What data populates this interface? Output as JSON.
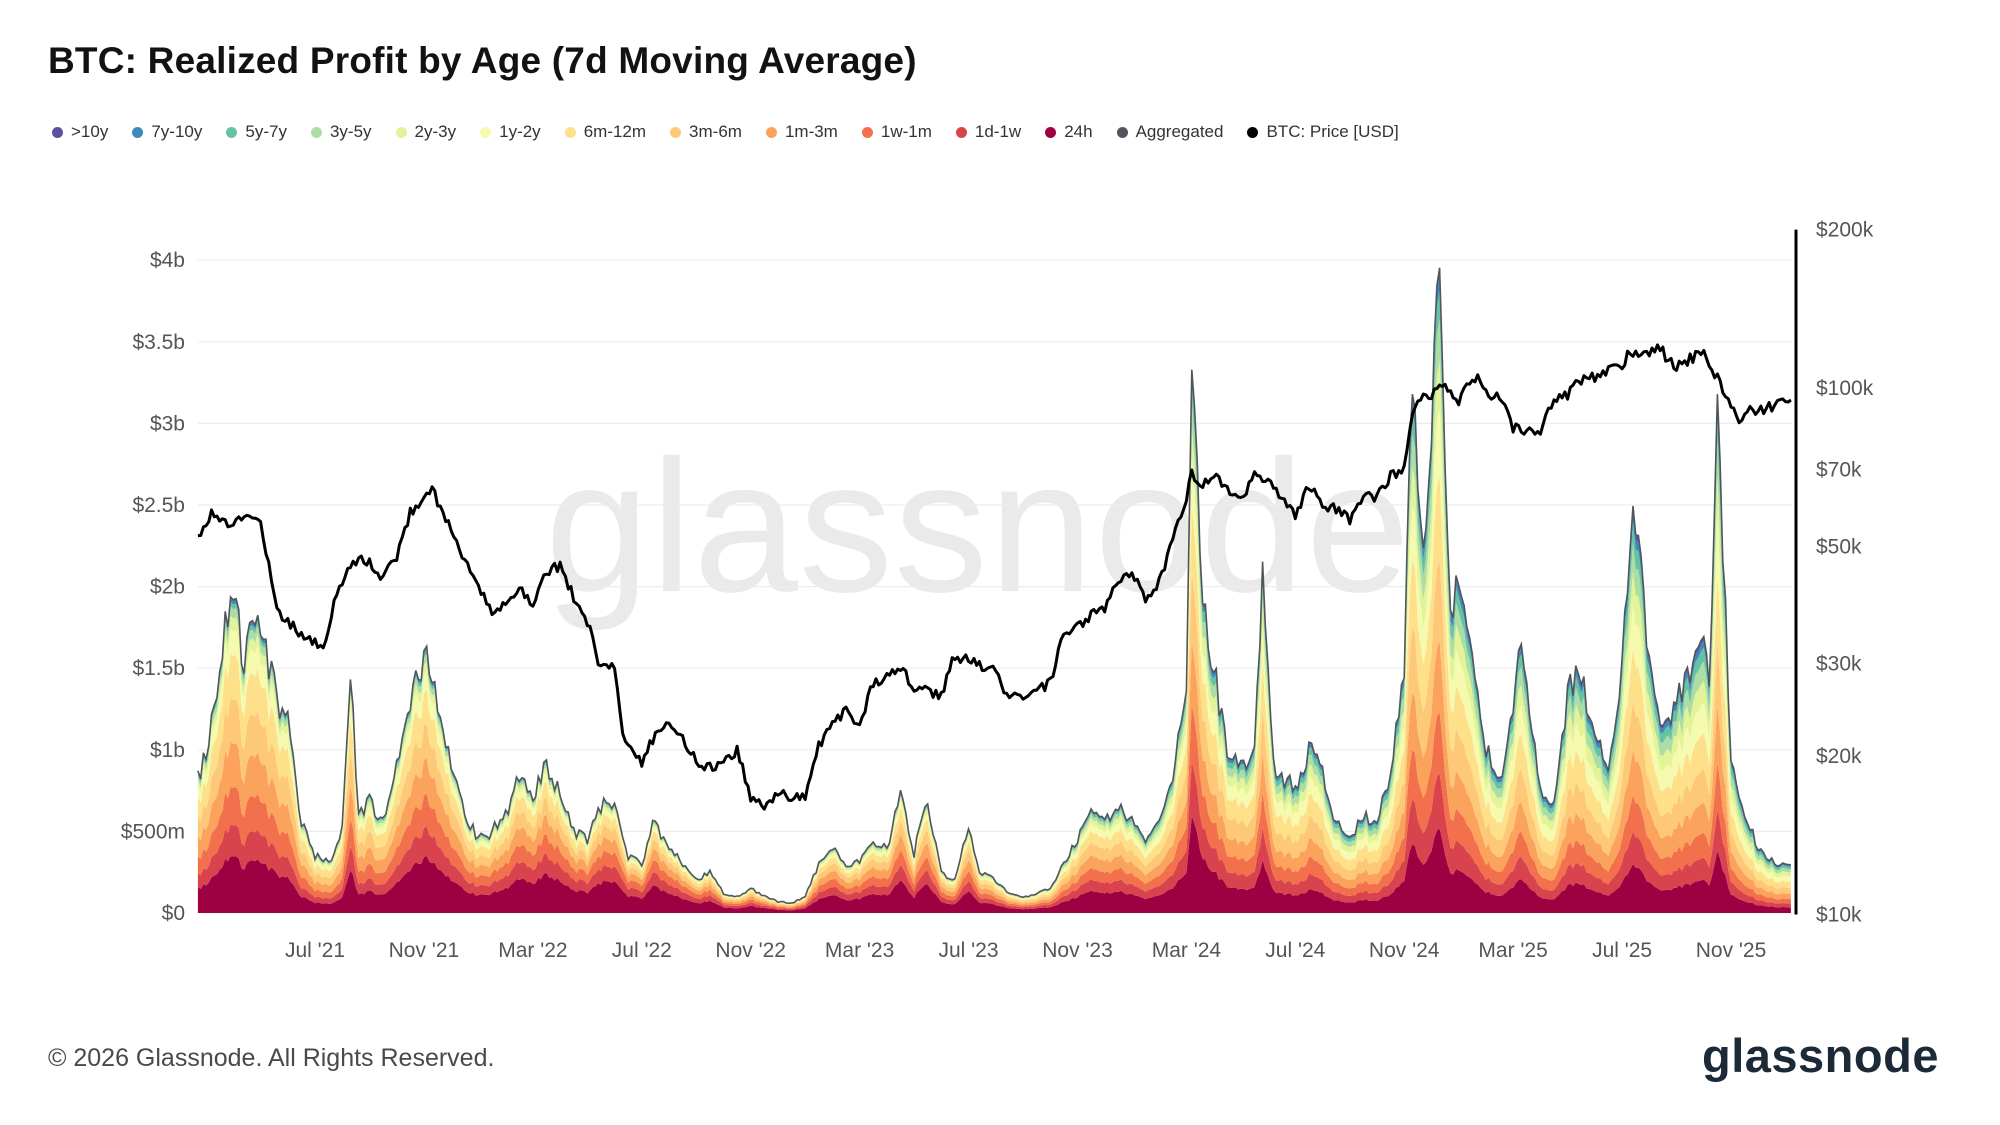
{
  "title": "BTC: Realized Profit by Age (7d Moving Average)",
  "watermark": "glassnode",
  "footer": {
    "copyright": "© 2026 Glassnode. All Rights Reserved.",
    "logo": "glassnode"
  },
  "legend": [
    {
      "label": ">10y",
      "color": "#5e4fa2"
    },
    {
      "label": "7y-10y",
      "color": "#3b8abd"
    },
    {
      "label": "5y-7y",
      "color": "#66c2a5"
    },
    {
      "label": "3y-5y",
      "color": "#abdda4"
    },
    {
      "label": "2y-3y",
      "color": "#e2f398"
    },
    {
      "label": "1y-2y",
      "color": "#f6faae"
    },
    {
      "label": "6m-12m",
      "color": "#fee08b"
    },
    {
      "label": "3m-6m",
      "color": "#fdc878"
    },
    {
      "label": "1m-3m",
      "color": "#fba35c"
    },
    {
      "label": "1w-1m",
      "color": "#f2704b"
    },
    {
      "label": "1d-1w",
      "color": "#d8434e"
    },
    {
      "label": "24h",
      "color": "#9e0142"
    },
    {
      "label": "Aggregated",
      "color": "#50565c"
    },
    {
      "label": "BTC: Price [USD]",
      "color": "#000000"
    }
  ],
  "chart_data": {
    "type": "stacked_area+line",
    "title": "BTC: Realized Profit by Age (7d Moving Average)",
    "x_unit": "months since 2021-03",
    "x_domain": [
      -0.3,
      58.2
    ],
    "x_ticks": [
      {
        "x": 4,
        "label": "Jul '21"
      },
      {
        "x": 8,
        "label": "Nov '21"
      },
      {
        "x": 12,
        "label": "Mar '22"
      },
      {
        "x": 16,
        "label": "Jul '22"
      },
      {
        "x": 20,
        "label": "Nov '22"
      },
      {
        "x": 24,
        "label": "Mar '23"
      },
      {
        "x": 28,
        "label": "Jul '23"
      },
      {
        "x": 32,
        "label": "Nov '23"
      },
      {
        "x": 36,
        "label": "Mar '24"
      },
      {
        "x": 40,
        "label": "Jul '24"
      },
      {
        "x": 44,
        "label": "Nov '24"
      },
      {
        "x": 48,
        "label": "Mar '25"
      },
      {
        "x": 52,
        "label": "Jul '25"
      },
      {
        "x": 56,
        "label": "Nov '25"
      }
    ],
    "left_axis": {
      "scale": "linear",
      "domain_b": [
        0,
        4
      ],
      "ticks": [
        {
          "v": 0,
          "label": "$0"
        },
        {
          "v": 0.5,
          "label": "$500m"
        },
        {
          "v": 1,
          "label": "$1b"
        },
        {
          "v": 1.5,
          "label": "$1.5b"
        },
        {
          "v": 2,
          "label": "$2b"
        },
        {
          "v": 2.5,
          "label": "$2.5b"
        },
        {
          "v": 3,
          "label": "$3b"
        },
        {
          "v": 3.5,
          "label": "$3.5b"
        },
        {
          "v": 4,
          "label": "$4b"
        }
      ]
    },
    "right_axis": {
      "scale": "log",
      "domain_k": [
        10,
        200
      ],
      "ticks": [
        {
          "v": 10,
          "label": "$10k"
        },
        {
          "v": 20,
          "label": "$20k"
        },
        {
          "v": 30,
          "label": "$30k"
        },
        {
          "v": 50,
          "label": "$50k"
        },
        {
          "v": 70,
          "label": "$70k"
        },
        {
          "v": 100,
          "label": "$100k"
        },
        {
          "v": 200,
          "label": "$200k"
        }
      ]
    },
    "bands_bottom_to_top": [
      {
        "name": "24h",
        "color": "#9e0142"
      },
      {
        "name": "1d-1w",
        "color": "#d8434e"
      },
      {
        "name": "1w-1m",
        "color": "#f2704b"
      },
      {
        "name": "1m-3m",
        "color": "#fba35c"
      },
      {
        "name": "3m-6m",
        "color": "#fdc878"
      },
      {
        "name": "6m-12m",
        "color": "#fee08b"
      },
      {
        "name": "1y-2y",
        "color": "#f6faae"
      },
      {
        "name": "2y-3y",
        "color": "#e2f398"
      },
      {
        "name": "3y-5y",
        "color": "#abdda4"
      },
      {
        "name": "5y-7y",
        "color": "#66c2a5"
      },
      {
        "name": "7y-10y",
        "color": "#3b8abd"
      },
      {
        "name": ">10y",
        "color": "#5e4fa2"
      }
    ],
    "aggregated_color": "#50565c",
    "total_series": {
      "name": "Aggregated realized profit (USD billions, 7d MA)",
      "points": [
        [
          -0.3,
          0.85
        ],
        [
          0,
          0.95
        ],
        [
          0.5,
          1.5
        ],
        [
          1,
          2.05
        ],
        [
          1.4,
          1.5
        ],
        [
          1.8,
          1.9
        ],
        [
          2.2,
          1.6
        ],
        [
          2.6,
          1.3
        ],
        [
          3,
          1.15
        ],
        [
          3.5,
          0.55
        ],
        [
          4,
          0.35
        ],
        [
          4.6,
          0.3
        ],
        [
          5,
          0.5
        ],
        [
          5.3,
          1.5
        ],
        [
          5.6,
          0.6
        ],
        [
          6,
          0.7
        ],
        [
          6.5,
          0.55
        ],
        [
          7,
          0.9
        ],
        [
          7.5,
          1.25
        ],
        [
          8,
          1.6
        ],
        [
          8.4,
          1.35
        ],
        [
          9,
          0.95
        ],
        [
          9.5,
          0.6
        ],
        [
          10,
          0.45
        ],
        [
          10.5,
          0.5
        ],
        [
          11,
          0.6
        ],
        [
          11.5,
          0.85
        ],
        [
          12,
          0.7
        ],
        [
          12.4,
          0.9
        ],
        [
          13,
          0.75
        ],
        [
          13.5,
          0.5
        ],
        [
          14,
          0.45
        ],
        [
          14.5,
          0.65
        ],
        [
          15,
          0.7
        ],
        [
          15.5,
          0.35
        ],
        [
          16,
          0.3
        ],
        [
          16.4,
          0.55
        ],
        [
          17,
          0.42
        ],
        [
          17.5,
          0.3
        ],
        [
          18,
          0.2
        ],
        [
          18.5,
          0.25
        ],
        [
          19,
          0.12
        ],
        [
          19.5,
          0.1
        ],
        [
          20,
          0.15
        ],
        [
          20.5,
          0.1
        ],
        [
          21,
          0.07
        ],
        [
          21.5,
          0.06
        ],
        [
          22,
          0.1
        ],
        [
          22.5,
          0.3
        ],
        [
          23,
          0.4
        ],
        [
          23.5,
          0.3
        ],
        [
          24,
          0.32
        ],
        [
          24.5,
          0.45
        ],
        [
          25,
          0.4
        ],
        [
          25.5,
          0.72
        ],
        [
          26,
          0.35
        ],
        [
          26.4,
          0.7
        ],
        [
          27,
          0.25
        ],
        [
          27.5,
          0.2
        ],
        [
          28,
          0.55
        ],
        [
          28.4,
          0.25
        ],
        [
          29,
          0.2
        ],
        [
          29.5,
          0.12
        ],
        [
          30,
          0.1
        ],
        [
          30.5,
          0.12
        ],
        [
          31,
          0.15
        ],
        [
          31.5,
          0.3
        ],
        [
          32,
          0.45
        ],
        [
          32.5,
          0.6
        ],
        [
          33,
          0.55
        ],
        [
          33.5,
          0.65
        ],
        [
          34,
          0.55
        ],
        [
          34.5,
          0.42
        ],
        [
          35,
          0.6
        ],
        [
          35.5,
          0.8
        ],
        [
          36,
          1.4
        ],
        [
          36.2,
          3.2
        ],
        [
          36.6,
          2.0
        ],
        [
          37,
          1.5
        ],
        [
          37.5,
          1.0
        ],
        [
          38,
          0.9
        ],
        [
          38.5,
          1.0
        ],
        [
          38.8,
          2.1
        ],
        [
          39.2,
          0.9
        ],
        [
          40,
          0.75
        ],
        [
          40.5,
          1.0
        ],
        [
          41,
          0.85
        ],
        [
          41.5,
          0.55
        ],
        [
          42,
          0.45
        ],
        [
          42.5,
          0.6
        ],
        [
          43,
          0.55
        ],
        [
          43.5,
          0.85
        ],
        [
          44,
          1.5
        ],
        [
          44.3,
          3.4
        ],
        [
          44.7,
          2.2
        ],
        [
          45,
          3.0
        ],
        [
          45.3,
          3.95
        ],
        [
          45.7,
          1.9
        ],
        [
          46,
          2.0
        ],
        [
          46.5,
          1.6
        ],
        [
          47,
          1.0
        ],
        [
          47.5,
          0.8
        ],
        [
          48,
          1.3
        ],
        [
          48.3,
          1.65
        ],
        [
          49,
          0.75
        ],
        [
          49.5,
          0.65
        ],
        [
          50,
          1.35
        ],
        [
          50.5,
          1.5
        ],
        [
          51,
          1.05
        ],
        [
          51.5,
          0.9
        ],
        [
          52,
          1.5
        ],
        [
          52.3,
          2.35
        ],
        [
          52.7,
          2.25
        ],
        [
          53,
          1.5
        ],
        [
          53.5,
          1.1
        ],
        [
          54,
          1.3
        ],
        [
          54.5,
          1.5
        ],
        [
          55,
          1.7
        ],
        [
          55.2,
          1.4
        ],
        [
          55.5,
          3.05
        ],
        [
          56,
          1.0
        ],
        [
          56.5,
          0.6
        ],
        [
          57,
          0.4
        ],
        [
          57.6,
          0.3
        ],
        [
          58.2,
          0.28
        ]
      ]
    },
    "price_series": {
      "name": "BTC: Price [USD]",
      "color": "#000000",
      "unit": "USD thousands",
      "points": [
        [
          -0.3,
          52
        ],
        [
          0.2,
          58
        ],
        [
          0.8,
          55
        ],
        [
          1.4,
          57
        ],
        [
          2,
          56
        ],
        [
          2.3,
          46
        ],
        [
          2.6,
          38
        ],
        [
          3,
          36
        ],
        [
          3.5,
          34
        ],
        [
          4,
          33
        ],
        [
          4.3,
          31.5
        ],
        [
          4.7,
          39
        ],
        [
          5,
          43
        ],
        [
          5.5,
          47
        ],
        [
          6,
          47
        ],
        [
          6.4,
          43
        ],
        [
          7,
          48
        ],
        [
          7.5,
          58
        ],
        [
          8,
          62
        ],
        [
          8.3,
          65
        ],
        [
          8.7,
          57
        ],
        [
          9,
          54
        ],
        [
          9.5,
          47
        ],
        [
          10,
          42
        ],
        [
          10.5,
          37
        ],
        [
          11,
          39
        ],
        [
          11.5,
          42
        ],
        [
          12,
          39
        ],
        [
          12.5,
          45
        ],
        [
          13,
          46
        ],
        [
          13.5,
          40
        ],
        [
          14,
          36
        ],
        [
          14.4,
          30
        ],
        [
          15,
          30
        ],
        [
          15.3,
          22
        ],
        [
          15.7,
          20
        ],
        [
          16,
          19.5
        ],
        [
          16.5,
          22
        ],
        [
          17,
          23.5
        ],
        [
          17.5,
          21.5
        ],
        [
          18,
          19.5
        ],
        [
          18.5,
          19
        ],
        [
          19,
          19.5
        ],
        [
          19.5,
          20.5
        ],
        [
          20,
          16.5
        ],
        [
          20.5,
          16.2
        ],
        [
          21,
          17
        ],
        [
          21.5,
          16.7
        ],
        [
          22,
          16.8
        ],
        [
          22.5,
          21
        ],
        [
          23,
          23
        ],
        [
          23.5,
          24.5
        ],
        [
          24,
          22.5
        ],
        [
          24.4,
          27
        ],
        [
          25,
          28.5
        ],
        [
          25.5,
          29.5
        ],
        [
          26,
          27
        ],
        [
          26.5,
          26.5
        ],
        [
          27,
          26
        ],
        [
          27.4,
          30.5
        ],
        [
          28,
          30.5
        ],
        [
          28.5,
          29.5
        ],
        [
          29,
          29
        ],
        [
          29.4,
          26
        ],
        [
          30,
          26
        ],
        [
          30.5,
          26.5
        ],
        [
          31,
          27.5
        ],
        [
          31.5,
          34
        ],
        [
          32,
          35
        ],
        [
          32.5,
          37
        ],
        [
          33,
          38
        ],
        [
          33.5,
          43
        ],
        [
          34,
          44
        ],
        [
          34.5,
          40
        ],
        [
          35,
          43
        ],
        [
          35.5,
          51
        ],
        [
          36,
          62
        ],
        [
          36.2,
          69
        ],
        [
          36.6,
          65
        ],
        [
          37,
          69
        ],
        [
          37.5,
          64
        ],
        [
          38,
          61
        ],
        [
          38.5,
          68
        ],
        [
          39,
          67
        ],
        [
          39.5,
          62
        ],
        [
          40,
          57
        ],
        [
          40.5,
          65
        ],
        [
          41,
          60
        ],
        [
          41.5,
          59
        ],
        [
          42,
          56
        ],
        [
          42.5,
          63
        ],
        [
          43,
          62
        ],
        [
          43.5,
          68
        ],
        [
          44,
          70
        ],
        [
          44.3,
          88
        ],
        [
          44.7,
          97
        ],
        [
          45,
          96
        ],
        [
          45.3,
          102
        ],
        [
          45.7,
          97
        ],
        [
          46,
          94
        ],
        [
          46.3,
          102
        ],
        [
          46.7,
          105
        ],
        [
          47,
          98
        ],
        [
          47.5,
          96
        ],
        [
          48,
          84
        ],
        [
          48.4,
          83
        ],
        [
          49,
          83
        ],
        [
          49.5,
          94
        ],
        [
          50,
          97
        ],
        [
          50.5,
          104
        ],
        [
          51,
          105
        ],
        [
          51.5,
          108
        ],
        [
          52,
          110
        ],
        [
          52.3,
          118
        ],
        [
          52.7,
          116
        ],
        [
          53,
          115
        ],
        [
          53.3,
          121
        ],
        [
          53.7,
          113
        ],
        [
          54,
          109
        ],
        [
          54.5,
          114
        ],
        [
          55,
          116
        ],
        [
          55.2,
          110
        ],
        [
          55.5,
          104
        ],
        [
          56,
          92
        ],
        [
          56.3,
          86
        ],
        [
          56.7,
          92
        ],
        [
          57,
          90
        ],
        [
          57.6,
          93
        ],
        [
          58.2,
          96
        ]
      ]
    },
    "composition_fractions_note": "fraction of aggregated profit per band, bottom-to-top band order, linearly interpolated between anchor x positions",
    "composition_fractions": [
      {
        "x": 5,
        "f": [
          0.18,
          0.1,
          0.12,
          0.14,
          0.14,
          0.14,
          0.08,
          0.04,
          0.03,
          0.015,
          0.01,
          0.005
        ]
      },
      {
        "x": 16,
        "f": [
          0.3,
          0.14,
          0.13,
          0.12,
          0.1,
          0.09,
          0.05,
          0.03,
          0.02,
          0.01,
          0.005,
          0.005
        ]
      },
      {
        "x": 28,
        "f": [
          0.26,
          0.12,
          0.12,
          0.13,
          0.12,
          0.1,
          0.06,
          0.04,
          0.025,
          0.015,
          0.005,
          0.005
        ]
      },
      {
        "x": 40,
        "f": [
          0.14,
          0.09,
          0.1,
          0.11,
          0.13,
          0.13,
          0.1,
          0.07,
          0.06,
          0.04,
          0.02,
          0.01
        ]
      },
      {
        "x": 52,
        "f": [
          0.12,
          0.08,
          0.09,
          0.11,
          0.12,
          0.13,
          0.11,
          0.08,
          0.07,
          0.05,
          0.025,
          0.015
        ]
      }
    ]
  }
}
